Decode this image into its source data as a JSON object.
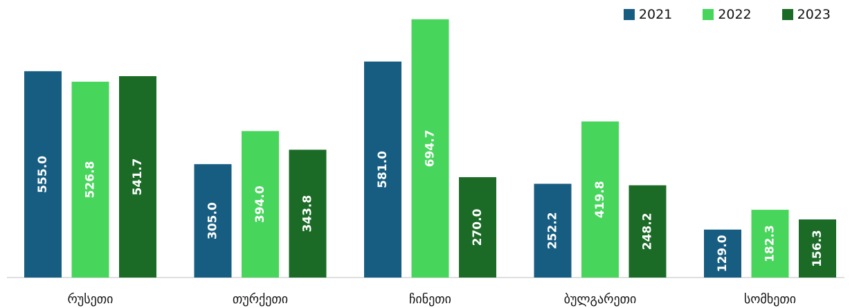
{
  "chart_data": {
    "type": "bar",
    "categories": [
      "რუსეთი",
      "თურქეთი",
      "ჩინეთი",
      "ბულგარეთი",
      "სომხეთი"
    ],
    "series": [
      {
        "name": "2021",
        "color": "#175d82",
        "values": [
          555.0,
          305.0,
          581.0,
          252.2,
          129.0
        ]
      },
      {
        "name": "2022",
        "color": "#47d65b",
        "values": [
          526.8,
          394.0,
          694.7,
          419.8,
          182.3
        ]
      },
      {
        "name": "2023",
        "color": "#1b6b27",
        "values": [
          541.7,
          343.8,
          270.0,
          248.2,
          156.3
        ]
      }
    ],
    "ylim": [
      0,
      700
    ],
    "grid": false,
    "legend_position": "top-right",
    "data_labels": "inside-vertical",
    "title": "",
    "xlabel": "",
    "ylabel": ""
  }
}
